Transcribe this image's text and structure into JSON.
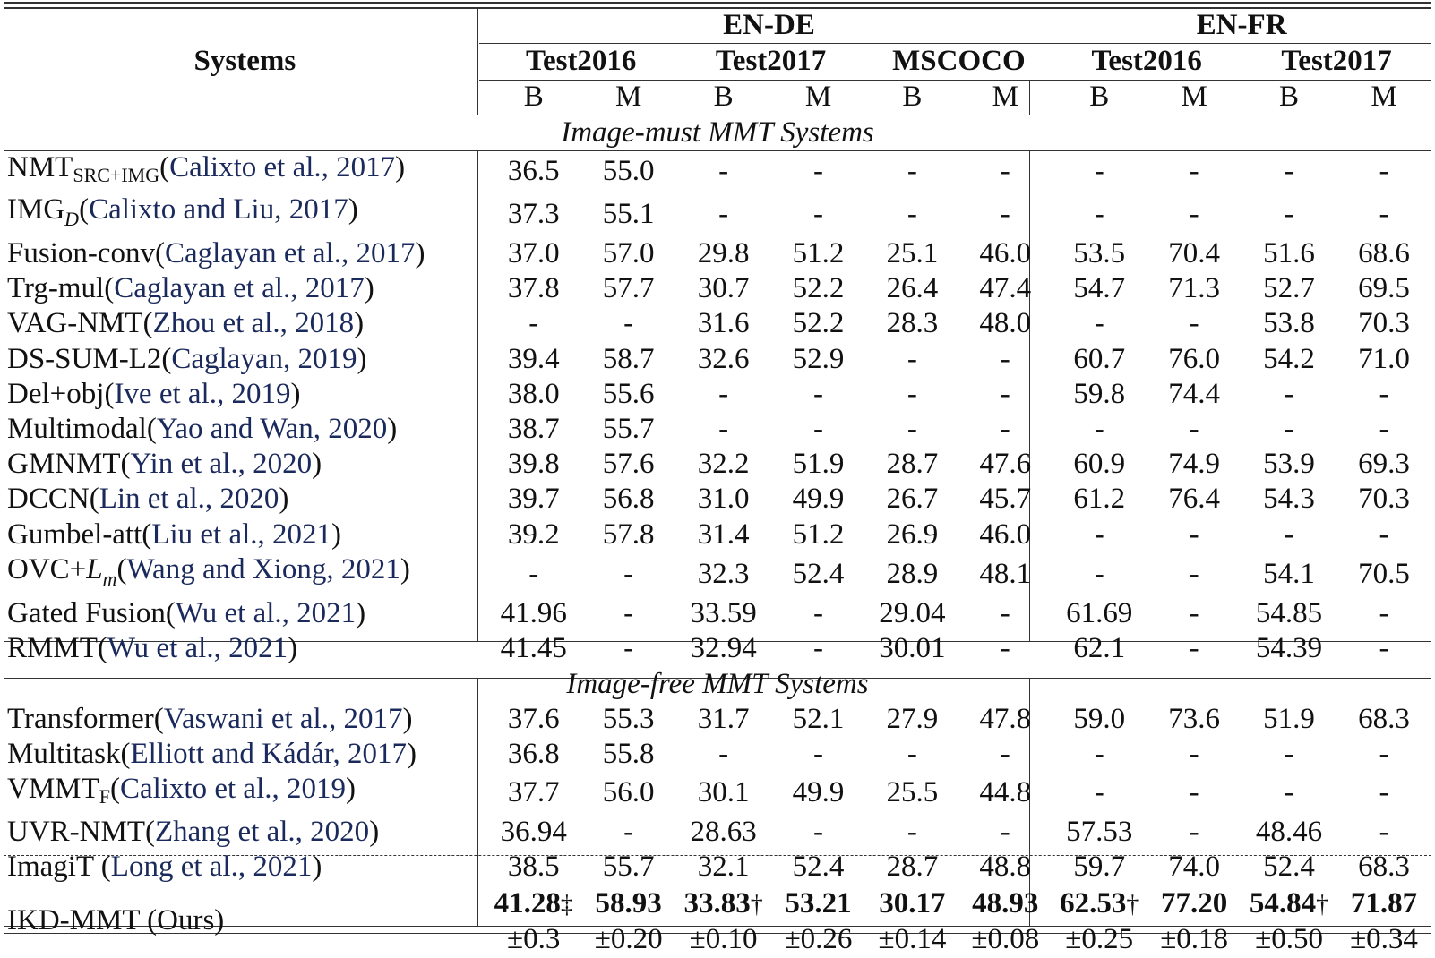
{
  "table": {
    "header": {
      "systems_label": "Systems",
      "language_pairs": [
        {
          "label": "EN-DE",
          "datasets": [
            "Test2016",
            "Test2017",
            "MSCOCO"
          ]
        },
        {
          "label": "EN-FR",
          "datasets": [
            "Test2016",
            "Test2017"
          ]
        }
      ],
      "metrics": [
        "B",
        "M",
        "B",
        "M",
        "B",
        "M",
        "B",
        "M",
        "B",
        "M"
      ]
    },
    "sections": [
      {
        "title": "Image-must MMT Systems",
        "rows": [
          {
            "name": "NMT",
            "name_sub": "SRC+IMG",
            "name_sub_style": "roman",
            "cite": "Calixto et al., 2017",
            "values": [
              "36.5",
              "55.0",
              "-",
              "-",
              "-",
              "-",
              "-",
              "-",
              "-",
              "-"
            ]
          },
          {
            "name": "IMG",
            "name_sub": "D",
            "name_sub_style": "italic",
            "cite": "Calixto and Liu, 2017",
            "values": [
              "37.3",
              "55.1",
              "-",
              "-",
              "-",
              "-",
              "-",
              "-",
              "-",
              "-"
            ]
          },
          {
            "name": "Fusion-conv",
            "cite": "Caglayan et al., 2017",
            "values": [
              "37.0",
              "57.0",
              "29.8",
              "51.2",
              "25.1",
              "46.0",
              "53.5",
              "70.4",
              "51.6",
              "68.6"
            ]
          },
          {
            "name": "Trg-mul",
            "cite": "Caglayan et al., 2017",
            "values": [
              "37.8",
              "57.7",
              "30.7",
              "52.2",
              "26.4",
              "47.4",
              "54.7",
              "71.3",
              "52.7",
              "69.5"
            ]
          },
          {
            "name": "VAG-NMT",
            "cite": "Zhou et al., 2018",
            "values": [
              "-",
              "-",
              "31.6",
              "52.2",
              "28.3",
              "48.0",
              "-",
              "-",
              "53.8",
              "70.3"
            ]
          },
          {
            "name": "DS-SUM-L2",
            "cite": "Caglayan, 2019",
            "values": [
              "39.4",
              "58.7",
              "32.6",
              "52.9",
              "-",
              "-",
              "60.7",
              "76.0",
              "54.2",
              "71.0"
            ]
          },
          {
            "name": "Del+obj",
            "cite": "Ive et al., 2019",
            "values": [
              "38.0",
              "55.6",
              "-",
              "-",
              "-",
              "-",
              "59.8",
              "74.4",
              "-",
              "-"
            ]
          },
          {
            "name": "Multimodal",
            "cite": "Yao and Wan, 2020",
            "values": [
              "38.7",
              "55.7",
              "-",
              "-",
              "-",
              "-",
              "-",
              "-",
              "-",
              "-"
            ]
          },
          {
            "name": "GMNMT",
            "cite": "Yin et al., 2020",
            "values": [
              "39.8",
              "57.6",
              "32.2",
              "51.9",
              "28.7",
              "47.6",
              "60.9",
              "74.9",
              "53.9",
              "69.3"
            ]
          },
          {
            "name": "DCCN",
            "cite": "Lin et al., 2020",
            "values": [
              "39.7",
              "56.8",
              "31.0",
              "49.9",
              "26.7",
              "45.7",
              "61.2",
              "76.4",
              "54.3",
              "70.3"
            ]
          },
          {
            "name": "Gumbel-att",
            "cite": "Liu et al., 2021",
            "values": [
              "39.2",
              "57.8",
              "31.4",
              "51.2",
              "26.9",
              "46.0",
              "-",
              "-",
              "-",
              "-"
            ]
          },
          {
            "name": "OVC+",
            "name_ital": "L",
            "name_sub": "m",
            "name_sub_style": "italic",
            "cite": "Wang and Xiong, 2021",
            "values": [
              "-",
              "-",
              "32.3",
              "52.4",
              "28.9",
              "48.1",
              "-",
              "-",
              "54.1",
              "70.5"
            ]
          },
          {
            "name": "Gated Fusion",
            "cite": "Wu et al., 2021",
            "values": [
              "41.96",
              "-",
              "33.59",
              "-",
              "29.04",
              "-",
              "61.69",
              "-",
              "54.85",
              "-"
            ]
          },
          {
            "name": "RMMT",
            "cite": "Wu et al., 2021",
            "values": [
              "41.45",
              "-",
              "32.94",
              "-",
              "30.01",
              "-",
              "62.1",
              "-",
              "54.39",
              "-"
            ]
          }
        ]
      },
      {
        "title": "Image-free MMT Systems",
        "rows": [
          {
            "name": "Transformer",
            "cite": "Vaswani et al., 2017",
            "values": [
              "37.6",
              "55.3",
              "31.7",
              "52.1",
              "27.9",
              "47.8",
              "59.0",
              "73.6",
              "51.9",
              "68.3"
            ]
          },
          {
            "name": "Multitask",
            "cite": "Elliott and Kádár, 2017",
            "values": [
              "36.8",
              "55.8",
              "-",
              "-",
              "-",
              "-",
              "-",
              "-",
              "-",
              "-"
            ]
          },
          {
            "name": "VMMT",
            "name_sub": "F",
            "name_sub_style": "roman",
            "cite": "Calixto et al., 2019",
            "values": [
              "37.7",
              "56.0",
              "30.1",
              "49.9",
              "25.5",
              "44.8",
              "-",
              "-",
              "-",
              "-"
            ]
          },
          {
            "name": "UVR-NMT",
            "cite": "Zhang et al., 2020",
            "values": [
              "36.94",
              "-",
              "28.63",
              "-",
              "-",
              "-",
              "57.53",
              "-",
              "48.46",
              "-"
            ]
          },
          {
            "name": "ImagiT ",
            "cite": "Long et al., 2021",
            "values": [
              "38.5",
              "55.7",
              "32.1",
              "52.4",
              "28.7",
              "48.8",
              "59.7",
              "74.0",
              "52.4",
              "68.3"
            ]
          }
        ]
      }
    ],
    "ours": {
      "name": "IKD-MMT (Ours)",
      "values": [
        "41.28",
        "58.93",
        "33.83",
        "53.21",
        "30.17",
        "48.93",
        "62.53",
        "77.20",
        "54.84",
        "71.87"
      ],
      "marks": [
        "‡",
        "",
        "†",
        "",
        "",
        "",
        "†",
        "",
        "†",
        ""
      ],
      "std": [
        "±0.3",
        "±0.20",
        "±0.10",
        "±0.26",
        "±0.14",
        "±0.08",
        "±0.25",
        "±0.18",
        "±0.50",
        "±0.34"
      ]
    }
  },
  "colors": {
    "citation": "#1b2a5c",
    "text": "#111111",
    "rule": "#333333"
  }
}
